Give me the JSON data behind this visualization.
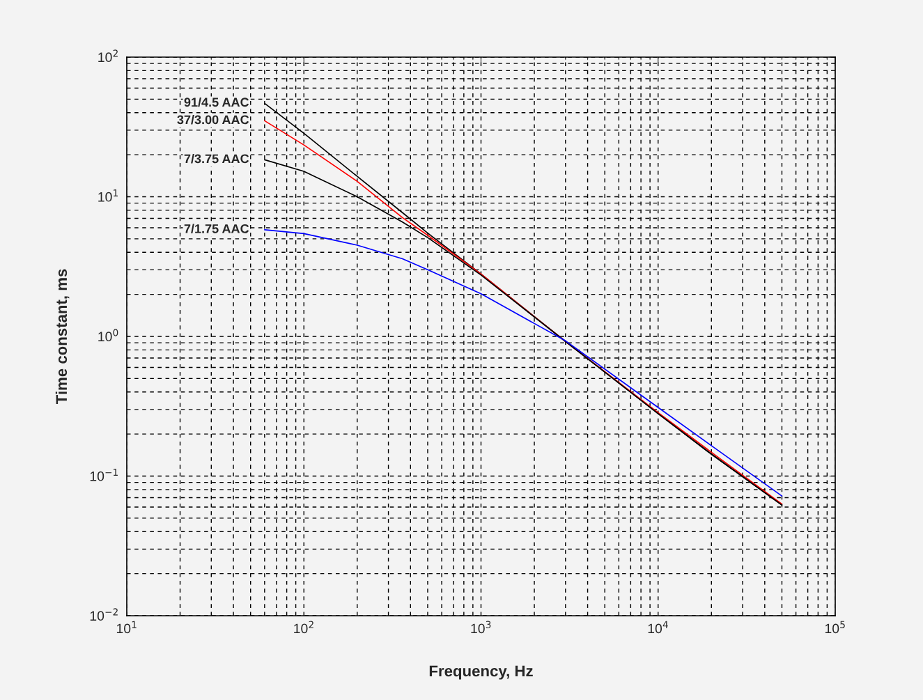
{
  "chart_data": {
    "type": "line",
    "xlabel": "Frequency, Hz",
    "ylabel": "Time constant, ms",
    "log": "xy",
    "grid": true,
    "marker": "none",
    "line_style": "solid",
    "x": [
      60,
      100,
      200,
      360,
      500,
      1000,
      3000,
      10000,
      20000,
      50000
    ],
    "xlim": [
      10,
      100000
    ],
    "ylim": [
      0.01,
      100
    ],
    "xticks": [
      {
        "value": 10,
        "label": "10$^{1}$"
      },
      {
        "value": 100,
        "label": "10$^{2}$"
      },
      {
        "value": 1000,
        "label": "10$^{3}$"
      },
      {
        "value": 10000,
        "label": "10$^{4}$"
      },
      {
        "value": 100000,
        "label": "10$^{5}$"
      }
    ],
    "yticks": [
      {
        "value": 0.01,
        "label": "10$^{−2}$"
      },
      {
        "value": 0.1,
        "label": "10$^{−1}$"
      },
      {
        "value": 1,
        "label": "10$^{0}$"
      },
      {
        "value": 10,
        "label": "10$^{1}$"
      },
      {
        "value": 100,
        "label": "10$^{2}$"
      }
    ],
    "series": [
      {
        "name": "91/4.5 AAC",
        "color": "#000000",
        "values": [
          46.7,
          28.5,
          14,
          7.7,
          5.5,
          2.8,
          0.92,
          0.28,
          0.143,
          0.062
        ]
      },
      {
        "name": "37/3.00 AAC",
        "color": "#ff0000",
        "values": [
          35,
          23.5,
          12.9,
          7.1,
          5.3,
          2.8,
          0.92,
          0.285,
          0.148,
          0.063
        ]
      },
      {
        "name": "7/3.75 AAC",
        "color": "#000000",
        "values": [
          18.4,
          15.2,
          10,
          6.6,
          5.1,
          2.75,
          0.92,
          0.28,
          0.144,
          0.062
        ]
      },
      {
        "name": "7/1.75 AAC",
        "color": "#0000ff",
        "values": [
          5.8,
          5.45,
          4.5,
          3.6,
          3.0,
          2.02,
          0.93,
          0.31,
          0.165,
          0.072
        ]
      }
    ]
  }
}
